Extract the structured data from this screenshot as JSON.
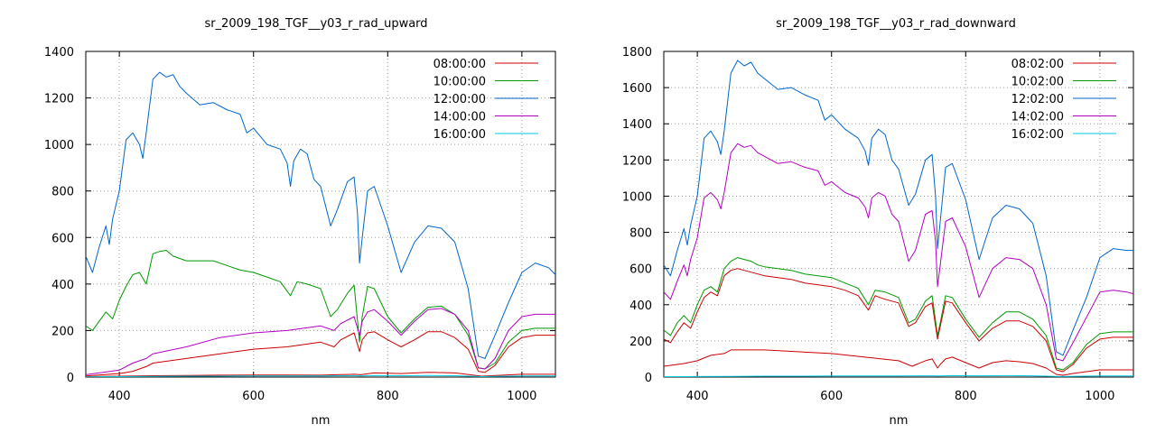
{
  "colors": {
    "red": "#cc0000",
    "green": "#009900",
    "blue": "#0066cc",
    "purple": "#b000c0",
    "cyan": "#00c8e0"
  },
  "chart_data": [
    {
      "type": "line",
      "title": "sr_2009_198_TGF__y03_r_rad_upward",
      "xlabel": "nm",
      "ylabel": "",
      "xlim": [
        350,
        1050
      ],
      "ylim": [
        0,
        1400
      ],
      "xticks": [
        400,
        600,
        800,
        1000
      ],
      "yticks": [
        0,
        200,
        400,
        600,
        800,
        1000,
        1200,
        1400
      ],
      "grid": true,
      "legend_position": "top-right",
      "series": [
        {
          "name": "08:00:00",
          "color_key": "red",
          "x": [
            350,
            400,
            450,
            500,
            550,
            600,
            650,
            700,
            750,
            760,
            780,
            820,
            860,
            900,
            940,
            1000,
            1050
          ],
          "y": [
            2,
            4,
            6,
            7,
            8,
            9,
            9,
            8,
            12,
            10,
            18,
            15,
            20,
            18,
            4,
            12,
            12
          ]
        },
        {
          "name": "10:00:00",
          "color_key": "green",
          "x": [
            350,
            360,
            370,
            380,
            390,
            400,
            410,
            420,
            430,
            440,
            450,
            460,
            470,
            480,
            490,
            500,
            520,
            540,
            560,
            580,
            600,
            620,
            640,
            655,
            665,
            680,
            700,
            715,
            725,
            740,
            750,
            758,
            762,
            770,
            780,
            800,
            820,
            840,
            860,
            880,
            900,
            920,
            935,
            945,
            960,
            980,
            1000,
            1020,
            1050
          ],
          "y": [
            220,
            200,
            240,
            280,
            250,
            330,
            390,
            440,
            450,
            400,
            530,
            540,
            545,
            520,
            510,
            500,
            500,
            500,
            480,
            460,
            450,
            430,
            410,
            350,
            410,
            400,
            380,
            260,
            290,
            360,
            395,
            150,
            260,
            390,
            380,
            260,
            190,
            250,
            300,
            305,
            270,
            180,
            40,
            35,
            60,
            150,
            200,
            210,
            210
          ]
        },
        {
          "name": "12:00:00",
          "color_key": "blue",
          "x": [
            350,
            360,
            370,
            380,
            385,
            390,
            400,
            410,
            420,
            430,
            435,
            440,
            450,
            460,
            470,
            480,
            490,
            500,
            520,
            540,
            560,
            580,
            590,
            600,
            620,
            640,
            650,
            655,
            660,
            670,
            680,
            690,
            700,
            715,
            725,
            740,
            750,
            755,
            758,
            762,
            770,
            780,
            800,
            820,
            840,
            860,
            880,
            900,
            920,
            935,
            945,
            960,
            980,
            1000,
            1020,
            1040,
            1050
          ],
          "y": [
            520,
            450,
            560,
            650,
            570,
            680,
            800,
            1020,
            1050,
            1000,
            940,
            1050,
            1280,
            1310,
            1290,
            1300,
            1250,
            1220,
            1170,
            1180,
            1150,
            1130,
            1050,
            1070,
            1000,
            980,
            920,
            820,
            930,
            980,
            960,
            850,
            820,
            650,
            720,
            840,
            860,
            700,
            490,
            600,
            800,
            820,
            650,
            450,
            580,
            650,
            640,
            580,
            380,
            90,
            80,
            180,
            320,
            450,
            490,
            470,
            440
          ]
        },
        {
          "name": "14:00:00",
          "color_key": "purple",
          "x": [
            350,
            400,
            420,
            440,
            450,
            500,
            550,
            600,
            650,
            700,
            720,
            730,
            750,
            758,
            762,
            770,
            780,
            800,
            820,
            840,
            860,
            880,
            900,
            920,
            935,
            945,
            960,
            980,
            1000,
            1020,
            1050
          ],
          "y": [
            10,
            30,
            60,
            80,
            100,
            130,
            170,
            190,
            200,
            220,
            200,
            230,
            260,
            180,
            240,
            280,
            290,
            240,
            180,
            240,
            290,
            295,
            270,
            200,
            40,
            35,
            80,
            200,
            260,
            270,
            270
          ]
        },
        {
          "name": "16:00:00",
          "color_key": "cyan",
          "x": [
            350,
            400,
            450,
            500,
            550,
            600,
            650,
            700,
            750,
            760,
            780,
            820,
            860,
            900,
            940,
            1000,
            1050
          ],
          "y": [
            1,
            2,
            3,
            4,
            4,
            5,
            5,
            5,
            6,
            5,
            7,
            6,
            7,
            6,
            2,
            5,
            5
          ]
        },
        {
          "name": "",
          "color_key": "red",
          "x": [
            350,
            400,
            420,
            440,
            450,
            500,
            550,
            600,
            650,
            700,
            720,
            730,
            750,
            758,
            762,
            770,
            780,
            800,
            820,
            840,
            860,
            880,
            900,
            920,
            935,
            945,
            960,
            980,
            1000,
            1020,
            1050
          ],
          "y": [
            5,
            15,
            25,
            45,
            60,
            80,
            100,
            120,
            130,
            150,
            130,
            160,
            190,
            110,
            160,
            190,
            195,
            160,
            130,
            160,
            195,
            195,
            170,
            120,
            25,
            20,
            50,
            130,
            170,
            180,
            180
          ]
        }
      ]
    },
    {
      "type": "line",
      "title": "sr_2009_198_TGF__y03_r_rad_downward",
      "xlabel": "nm",
      "ylabel": "",
      "xlim": [
        350,
        1050
      ],
      "ylim": [
        0,
        1800
      ],
      "xticks": [
        400,
        600,
        800,
        1000
      ],
      "yticks": [
        0,
        200,
        400,
        600,
        800,
        1000,
        1200,
        1400,
        1600,
        1800
      ],
      "grid": true,
      "legend_position": "top-right",
      "series": [
        {
          "name": "08:02:00",
          "color_key": "red",
          "x": [
            350,
            380,
            400,
            420,
            440,
            450,
            500,
            550,
            600,
            650,
            700,
            720,
            740,
            750,
            758,
            762,
            770,
            780,
            800,
            820,
            840,
            860,
            880,
            900,
            920,
            935,
            945,
            960,
            980,
            1000,
            1020,
            1050
          ],
          "y": [
            60,
            75,
            90,
            120,
            130,
            150,
            150,
            140,
            130,
            110,
            90,
            60,
            90,
            100,
            50,
            70,
            100,
            110,
            80,
            50,
            80,
            90,
            85,
            75,
            50,
            15,
            10,
            20,
            30,
            40,
            40,
            40
          ]
        },
        {
          "name": "10:02:00",
          "color_key": "green",
          "x": [
            350,
            360,
            370,
            380,
            390,
            400,
            410,
            420,
            430,
            440,
            450,
            460,
            470,
            480,
            490,
            500,
            520,
            540,
            560,
            580,
            600,
            620,
            640,
            655,
            665,
            680,
            700,
            715,
            725,
            740,
            750,
            758,
            762,
            770,
            780,
            800,
            820,
            840,
            860,
            880,
            900,
            920,
            935,
            945,
            960,
            980,
            1000,
            1020,
            1050
          ],
          "y": [
            260,
            230,
            300,
            340,
            300,
            400,
            480,
            500,
            470,
            600,
            640,
            660,
            650,
            640,
            620,
            610,
            600,
            590,
            570,
            560,
            550,
            520,
            490,
            400,
            480,
            470,
            440,
            300,
            320,
            420,
            450,
            230,
            300,
            450,
            440,
            320,
            220,
            300,
            360,
            360,
            320,
            230,
            50,
            40,
            80,
            180,
            240,
            250,
            250
          ]
        },
        {
          "name": "12:02:00",
          "color_key": "blue",
          "x": [
            350,
            360,
            370,
            380,
            385,
            390,
            400,
            410,
            420,
            430,
            435,
            440,
            450,
            460,
            470,
            480,
            490,
            500,
            520,
            540,
            560,
            580,
            590,
            600,
            620,
            640,
            650,
            655,
            660,
            670,
            680,
            690,
            700,
            715,
            725,
            740,
            750,
            755,
            758,
            762,
            770,
            780,
            800,
            820,
            840,
            860,
            880,
            900,
            920,
            935,
            945,
            960,
            980,
            1000,
            1020,
            1040,
            1050
          ],
          "y": [
            620,
            560,
            700,
            820,
            730,
            840,
            1000,
            1320,
            1360,
            1300,
            1230,
            1360,
            1680,
            1750,
            1720,
            1740,
            1680,
            1650,
            1590,
            1600,
            1560,
            1530,
            1420,
            1450,
            1370,
            1320,
            1250,
            1170,
            1320,
            1370,
            1340,
            1200,
            1150,
            950,
            1010,
            1200,
            1230,
            1000,
            710,
            860,
            1160,
            1180,
            980,
            650,
            880,
            950,
            930,
            850,
            560,
            140,
            120,
            260,
            440,
            660,
            710,
            700,
            700
          ]
        },
        {
          "name": "14:02:00",
          "color_key": "purple",
          "x": [
            350,
            360,
            370,
            380,
            385,
            390,
            400,
            410,
            420,
            430,
            435,
            440,
            450,
            460,
            470,
            480,
            490,
            500,
            520,
            540,
            560,
            580,
            590,
            600,
            620,
            640,
            650,
            655,
            660,
            670,
            680,
            690,
            700,
            715,
            725,
            740,
            750,
            755,
            758,
            762,
            770,
            780,
            800,
            820,
            840,
            860,
            880,
            900,
            920,
            935,
            945,
            960,
            980,
            1000,
            1020,
            1040,
            1050
          ],
          "y": [
            470,
            430,
            530,
            620,
            560,
            650,
            770,
            990,
            1020,
            980,
            930,
            1020,
            1240,
            1290,
            1270,
            1280,
            1240,
            1220,
            1180,
            1190,
            1160,
            1140,
            1060,
            1080,
            1020,
            990,
            940,
            880,
            990,
            1020,
            1000,
            900,
            860,
            640,
            700,
            900,
            920,
            750,
            500,
            620,
            860,
            880,
            720,
            440,
            600,
            660,
            650,
            600,
            400,
            100,
            90,
            190,
            330,
            470,
            480,
            470,
            460
          ]
        },
        {
          "name": "16:02:00",
          "color_key": "cyan",
          "x": [
            350,
            400,
            450,
            500,
            550,
            600,
            650,
            700,
            750,
            760,
            780,
            820,
            860,
            900,
            940,
            1000,
            1050
          ],
          "y": [
            2,
            3,
            4,
            5,
            5,
            6,
            6,
            6,
            7,
            6,
            8,
            7,
            8,
            7,
            3,
            6,
            6
          ]
        },
        {
          "name": "",
          "color_key": "red",
          "x": [
            350,
            360,
            370,
            380,
            390,
            400,
            410,
            420,
            430,
            440,
            450,
            460,
            470,
            480,
            490,
            500,
            520,
            540,
            560,
            580,
            600,
            620,
            640,
            655,
            665,
            680,
            700,
            715,
            725,
            740,
            750,
            758,
            762,
            770,
            780,
            800,
            820,
            840,
            860,
            880,
            900,
            920,
            935,
            945,
            960,
            980,
            1000,
            1020,
            1050
          ],
          "y": [
            210,
            190,
            250,
            300,
            270,
            360,
            440,
            470,
            450,
            560,
            590,
            600,
            590,
            580,
            570,
            560,
            550,
            540,
            520,
            510,
            500,
            480,
            450,
            370,
            450,
            430,
            410,
            280,
            300,
            390,
            410,
            210,
            280,
            420,
            410,
            300,
            200,
            270,
            310,
            310,
            280,
            200,
            40,
            30,
            70,
            160,
            210,
            220,
            220
          ]
        }
      ]
    }
  ]
}
